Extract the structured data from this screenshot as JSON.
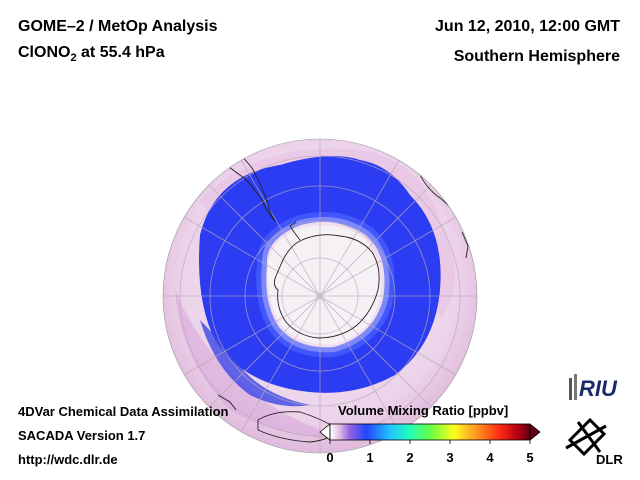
{
  "header": {
    "title_line1": "GOME–2 / MetOp Analysis",
    "species_prefix": "ClONO",
    "species_sub": "2",
    "species_suffix": " at 55.4 hPa",
    "datetime": "Jun 12, 2010, 12:00 GMT",
    "region": "Southern Hemisphere"
  },
  "footer": {
    "line1": "4DVar Chemical Data Assimilation",
    "line2": "SACADA Version 1.7",
    "line3": "http://wdc.dlr.de"
  },
  "colorbar": {
    "title": "Volume Mixing Ratio [ppbv]",
    "ticks": [
      "0",
      "1",
      "2",
      "3",
      "4",
      "5"
    ],
    "colors": [
      "#ffffff",
      "#e6c8e6",
      "#9060e0",
      "#2040ff",
      "#20c0ff",
      "#20ffb0",
      "#60ff40",
      "#ffff20",
      "#ffa020",
      "#ff3010",
      "#c00010",
      "#600010"
    ]
  },
  "logos": {
    "riu": "RIU",
    "dlr": "DLR"
  },
  "map": {
    "projection": "orthographic",
    "hemisphere": "south",
    "colors": {
      "background_field": "#f0dcef",
      "vortex_band": "#2a3cf0",
      "polar_core": "#f4f0f4",
      "coast": "#202020"
    }
  }
}
